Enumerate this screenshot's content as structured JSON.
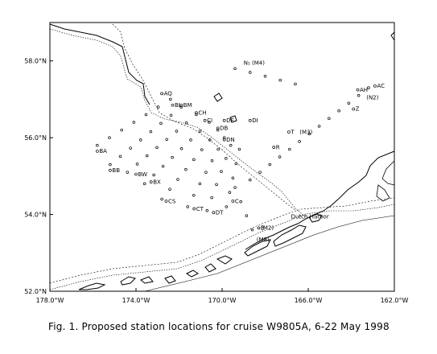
{
  "caption": "Fig. 1.  Proposed station locations for cruise W9805A, 6-22 May 1998",
  "map": {
    "lon_range": [
      -178,
      -162
    ],
    "lat_range": [
      52,
      59
    ],
    "x_ticks": [
      {
        "lon": -178,
        "label": "178.0°W"
      },
      {
        "lon": -174,
        "label": "174.0°W"
      },
      {
        "lon": -170,
        "label": "170.0°W"
      },
      {
        "lon": -166,
        "label": "166.0°W"
      },
      {
        "lon": -162,
        "label": "162.0°W"
      }
    ],
    "y_ticks": [
      {
        "lat": 52,
        "label": "52.0°N"
      },
      {
        "lat": 54,
        "label": "54.0°N"
      },
      {
        "lat": 56,
        "label": "56.0°N"
      },
      {
        "lat": 58,
        "label": "58.0°N"
      }
    ],
    "colors": {
      "ink": "#000000",
      "background": "#ffffff"
    }
  },
  "place_labels": [
    {
      "text": "Dutch Harbor",
      "lon": -166.8,
      "lat": 53.9
    },
    {
      "text": "N₁ (M4)",
      "lon": -169.0,
      "lat": 57.9
    },
    {
      "text": "(N2)",
      "lon": -163.3,
      "lat": 57.0
    },
    {
      "text": "(M3)",
      "lon": -166.4,
      "lat": 56.1
    },
    {
      "text": "(M2)",
      "lon": -168.2,
      "lat": 53.6
    },
    {
      "text": "(M8)",
      "lon": -168.4,
      "lat": 53.3
    }
  ],
  "station_labels": [
    {
      "text": "AQ",
      "lon": -172.8,
      "lat": 57.1
    },
    {
      "text": "BL",
      "lon": -172.3,
      "lat": 56.8
    },
    {
      "text": "BM",
      "lon": -171.9,
      "lat": 56.8
    },
    {
      "text": "CH",
      "lon": -171.2,
      "lat": 56.6
    },
    {
      "text": "CI",
      "lon": -170.8,
      "lat": 56.4
    },
    {
      "text": "DE",
      "lon": -169.9,
      "lat": 56.4
    },
    {
      "text": "DB",
      "lon": -170.2,
      "lat": 56.2
    },
    {
      "text": "DN",
      "lon": -169.9,
      "lat": 55.9
    },
    {
      "text": "DI",
      "lon": -168.7,
      "lat": 56.4
    },
    {
      "text": "AH",
      "lon": -163.7,
      "lat": 57.2
    },
    {
      "text": "AC",
      "lon": -162.9,
      "lat": 57.3
    },
    {
      "text": "Z",
      "lon": -163.9,
      "lat": 56.7
    },
    {
      "text": "T",
      "lon": -166.9,
      "lat": 56.1
    },
    {
      "text": "R",
      "lon": -167.6,
      "lat": 55.7
    },
    {
      "text": "BA",
      "lon": -175.8,
      "lat": 55.6
    },
    {
      "text": "BB",
      "lon": -175.2,
      "lat": 55.1
    },
    {
      "text": "BW",
      "lon": -174.0,
      "lat": 55.0
    },
    {
      "text": "BX",
      "lon": -173.3,
      "lat": 54.8
    },
    {
      "text": "CS",
      "lon": -172.6,
      "lat": 54.3
    },
    {
      "text": "CT",
      "lon": -171.3,
      "lat": 54.1
    },
    {
      "text": "DT",
      "lon": -170.4,
      "lat": 54.0
    },
    {
      "text": "C",
      "lon": -169.5,
      "lat": 54.3
    },
    {
      "text": "B",
      "lon": -168.3,
      "lat": 53.6
    }
  ],
  "station_transects": [
    {
      "from": [
        -175.8,
        55.8
      ],
      "to": [
        -172.4,
        57.0
      ],
      "n": 7
    },
    {
      "from": [
        -175.2,
        55.3
      ],
      "to": [
        -171.9,
        56.8
      ],
      "n": 8
    },
    {
      "from": [
        -174.4,
        55.1
      ],
      "to": [
        -171.2,
        56.6
      ],
      "n": 8
    },
    {
      "from": [
        -173.6,
        54.8
      ],
      "to": [
        -170.6,
        56.4
      ],
      "n": 8
    },
    {
      "from": [
        -172.8,
        54.4
      ],
      "to": [
        -170.2,
        56.2
      ],
      "n": 8
    },
    {
      "from": [
        -171.6,
        54.2
      ],
      "to": [
        -169.9,
        56.0
      ],
      "n": 7
    },
    {
      "from": [
        -170.7,
        54.1
      ],
      "to": [
        -169.6,
        55.8
      ],
      "n": 6
    },
    {
      "from": [
        -169.8,
        54.2
      ],
      "to": [
        -169.2,
        55.7
      ],
      "n": 5
    },
    {
      "from": [
        -168.7,
        54.9
      ],
      "to": [
        -163.2,
        57.3
      ],
      "n": 13
    },
    {
      "from": [
        -169.4,
        57.8
      ],
      "to": [
        -166.6,
        57.4
      ],
      "n": 5
    },
    {
      "from": [
        -169.4,
        54.7
      ],
      "to": [
        -168.6,
        53.6
      ],
      "n": 4
    }
  ]
}
